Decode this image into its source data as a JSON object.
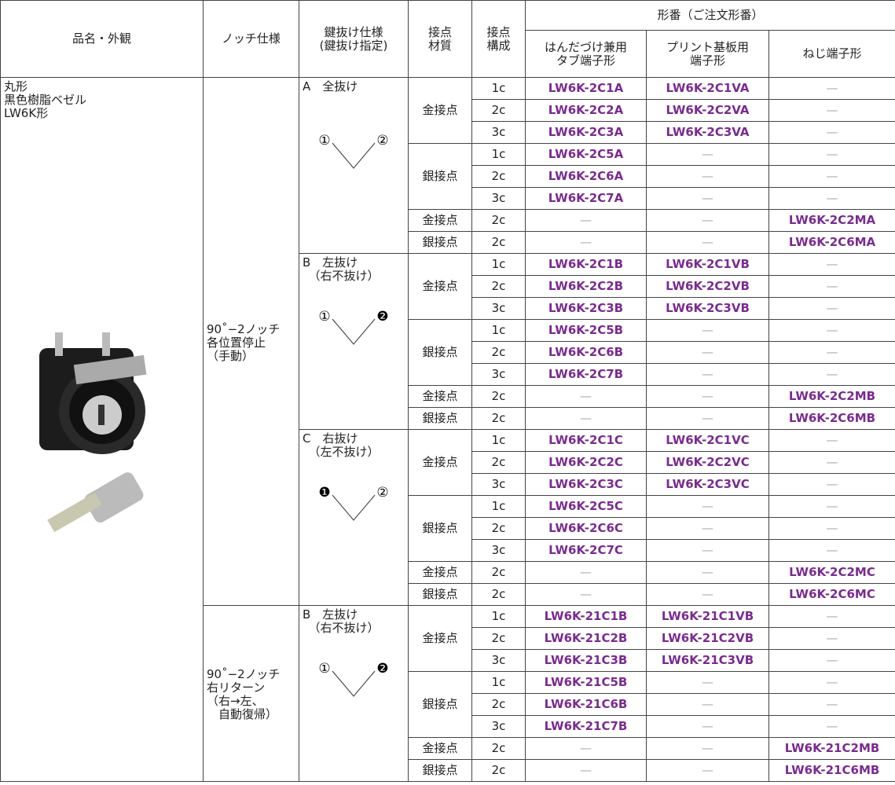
{
  "header": {
    "product": "品名・外観",
    "notch": "ノッチ仕様",
    "key": "鍵抜け仕様\n(鍵抜け指定)",
    "material": "接点\n材質",
    "config": "接点\n構成",
    "model": "形番（ご注文形番）",
    "solder": "はんだづけ兼用\nタブ端子形",
    "pcb": "プリント基板用\n端子形",
    "screw": "ねじ端子形"
  },
  "product": "丸形\n黒色樹脂ベゼル\nLW6K形",
  "notches": [
    {
      "label": "90˚−2ノッチ\n各位置停止\n（手動）",
      "groups": [
        {
          "key": "A　全抜け",
          "left": "①",
          "right": "②",
          "blocks": [
            {
              "material": "金接点",
              "rows": [
                [
                  "1c",
                  "LW6K-2C1A",
                  "LW6K-2C1VA",
                  "—"
                ],
                [
                  "2c",
                  "LW6K-2C2A",
                  "LW6K-2C2VA",
                  "—"
                ],
                [
                  "3c",
                  "LW6K-2C3A",
                  "LW6K-2C3VA",
                  "—"
                ]
              ]
            },
            {
              "material": "銀接点",
              "rows": [
                [
                  "1c",
                  "LW6K-2C5A",
                  "—",
                  "—"
                ],
                [
                  "2c",
                  "LW6K-2C6A",
                  "—",
                  "—"
                ],
                [
                  "3c",
                  "LW6K-2C7A",
                  "—",
                  "—"
                ]
              ]
            },
            {
              "material": "金接点",
              "rows": [
                [
                  "2c",
                  "—",
                  "—",
                  "LW6K-2C2MA"
                ]
              ]
            },
            {
              "material": "銀接点",
              "rows": [
                [
                  "2c",
                  "—",
                  "—",
                  "LW6K-2C6MA"
                ]
              ]
            }
          ]
        },
        {
          "key": "B　左抜け\n　（右不抜け）",
          "left": "①",
          "right": "❷",
          "blocks": [
            {
              "material": "金接点",
              "rows": [
                [
                  "1c",
                  "LW6K-2C1B",
                  "LW6K-2C1VB",
                  "—"
                ],
                [
                  "2c",
                  "LW6K-2C2B",
                  "LW6K-2C2VB",
                  "—"
                ],
                [
                  "3c",
                  "LW6K-2C3B",
                  "LW6K-2C3VB",
                  "—"
                ]
              ]
            },
            {
              "material": "銀接点",
              "rows": [
                [
                  "1c",
                  "LW6K-2C5B",
                  "—",
                  "—"
                ],
                [
                  "2c",
                  "LW6K-2C6B",
                  "—",
                  "—"
                ],
                [
                  "3c",
                  "LW6K-2C7B",
                  "—",
                  "—"
                ]
              ]
            },
            {
              "material": "金接点",
              "rows": [
                [
                  "2c",
                  "—",
                  "—",
                  "LW6K-2C2MB"
                ]
              ]
            },
            {
              "material": "銀接点",
              "rows": [
                [
                  "2c",
                  "—",
                  "—",
                  "LW6K-2C6MB"
                ]
              ]
            }
          ]
        },
        {
          "key": "C　右抜け\n　（左不抜け）",
          "left": "❶",
          "right": "②",
          "blocks": [
            {
              "material": "金接点",
              "rows": [
                [
                  "1c",
                  "LW6K-2C1C",
                  "LW6K-2C1VC",
                  "—"
                ],
                [
                  "2c",
                  "LW6K-2C2C",
                  "LW6K-2C2VC",
                  "—"
                ],
                [
                  "3c",
                  "LW6K-2C3C",
                  "LW6K-2C3VC",
                  "—"
                ]
              ]
            },
            {
              "material": "銀接点",
              "rows": [
                [
                  "1c",
                  "LW6K-2C5C",
                  "—",
                  "—"
                ],
                [
                  "2c",
                  "LW6K-2C6C",
                  "—",
                  "—"
                ],
                [
                  "3c",
                  "LW6K-2C7C",
                  "—",
                  "—"
                ]
              ]
            },
            {
              "material": "金接点",
              "rows": [
                [
                  "2c",
                  "—",
                  "—",
                  "LW6K-2C2MC"
                ]
              ]
            },
            {
              "material": "銀接点",
              "rows": [
                [
                  "2c",
                  "—",
                  "—",
                  "LW6K-2C6MC"
                ]
              ]
            }
          ]
        }
      ]
    },
    {
      "label": "90˚−2ノッチ\n右リターン\n（右→左、\n　自動復帰）",
      "groups": [
        {
          "key": "B　左抜け\n　（右不抜け）",
          "left": "①",
          "right": "❷",
          "blocks": [
            {
              "material": "金接点",
              "rows": [
                [
                  "1c",
                  "LW6K-21C1B",
                  "LW6K-21C1VB",
                  "—"
                ],
                [
                  "2c",
                  "LW6K-21C2B",
                  "LW6K-21C2VB",
                  "—"
                ],
                [
                  "3c",
                  "LW6K-21C3B",
                  "LW6K-21C3VB",
                  "—"
                ]
              ]
            },
            {
              "material": "銀接点",
              "rows": [
                [
                  "1c",
                  "LW6K-21C5B",
                  "—",
                  "—"
                ],
                [
                  "2c",
                  "LW6K-21C6B",
                  "—",
                  "—"
                ],
                [
                  "3c",
                  "LW6K-21C7B",
                  "—",
                  "—"
                ]
              ]
            },
            {
              "material": "金接点",
              "rows": [
                [
                  "2c",
                  "—",
                  "—",
                  "LW6K-21C2MB"
                ]
              ]
            },
            {
              "material": "銀接点",
              "rows": [
                [
                  "2c",
                  "—",
                  "—",
                  "LW6K-21C6MB"
                ]
              ]
            }
          ]
        }
      ]
    }
  ]
}
